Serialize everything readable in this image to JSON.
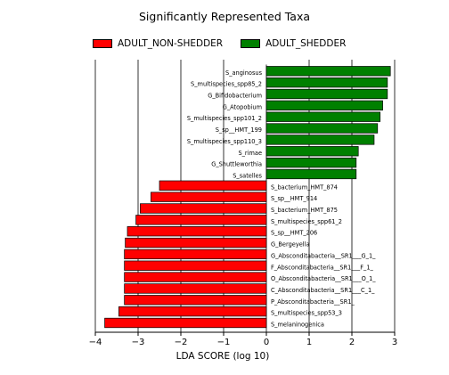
{
  "chart_data": {
    "type": "bar",
    "orientation": "horizontal",
    "title": "Significantly Represented Taxa",
    "xlabel": "LDA SCORE (log 10)",
    "ylabel": "",
    "xlim": [
      -4,
      3
    ],
    "xticks": [
      -4,
      -3,
      -2,
      -1,
      0,
      1,
      2,
      3
    ],
    "grid": "vertical",
    "legend_position": "top-left",
    "series": [
      {
        "name": "ADULT_NON-SHEDDER",
        "color": "#ff0000",
        "categories": [
          "S_bacterium_HMT_874",
          "S_sp__HMT_914",
          "S_bacterium_HMT_875",
          "S_multispecies_spp61_2",
          "S_sp__HMT_206",
          "G_Bergeyella",
          "G_Absconditabacteria__SR1___G_1_",
          "F_Absconditabacteria__SR1___F_1_",
          "O_Absconditabacteria__SR1___O_1_",
          "C_Absconditabacteria__SR1___C_1_",
          "P_Absconditabacteria__SR1_",
          "S_multispecies_spp53_3",
          "S_melaninogenica"
        ],
        "values": [
          -2.5,
          -2.7,
          -2.95,
          -3.05,
          -3.25,
          -3.3,
          -3.32,
          -3.32,
          -3.32,
          -3.32,
          -3.32,
          -3.45,
          -3.78
        ]
      },
      {
        "name": "ADULT_SHEDDER",
        "color": "#008000",
        "categories": [
          "S_anginosus",
          "S_multispecies_spp85_2",
          "G_Bifidobacterium",
          "G_Atopobium",
          "S_multispecies_spp101_2",
          "S_sp__HMT_199",
          "S_multispecies_spp110_3",
          "S_rimae",
          "G_Shuttleworthia",
          "S_satelles"
        ],
        "values": [
          2.9,
          2.83,
          2.83,
          2.72,
          2.66,
          2.6,
          2.52,
          2.15,
          2.1,
          2.1
        ]
      }
    ]
  }
}
